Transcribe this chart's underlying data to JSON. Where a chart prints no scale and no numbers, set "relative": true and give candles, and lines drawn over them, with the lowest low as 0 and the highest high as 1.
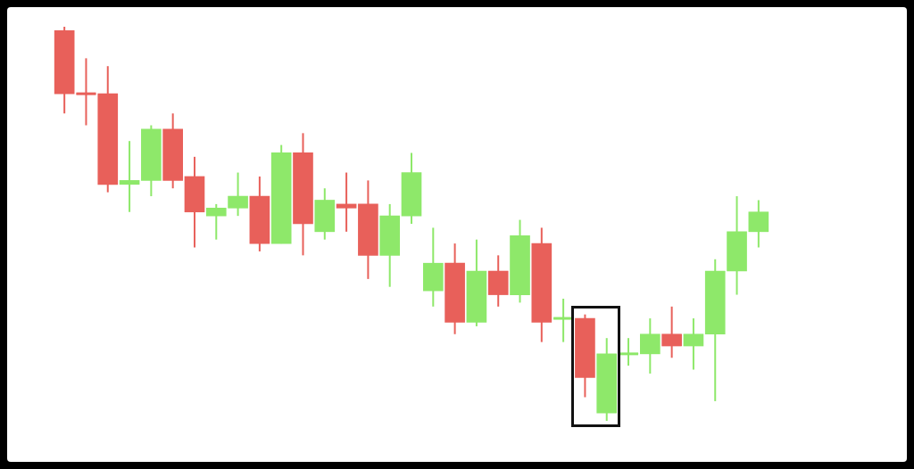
{
  "chart_data": {
    "type": "candlestick",
    "relative": true,
    "grid": false,
    "legend": false,
    "categories": [
      null,
      null,
      null,
      null,
      null,
      null,
      null,
      null,
      null,
      null,
      null,
      null,
      null,
      null,
      null,
      null,
      null,
      null,
      null,
      null,
      null,
      null,
      null,
      null,
      null,
      null,
      null,
      null,
      null,
      null,
      null,
      null,
      null
    ],
    "ohlc": [
      [
        0.99,
        1.0,
        0.78,
        0.83
      ],
      [
        0.83,
        0.92,
        0.75,
        0.83
      ],
      [
        0.83,
        0.9,
        0.58,
        0.6
      ],
      [
        0.6,
        0.71,
        0.53,
        0.61
      ],
      [
        0.61,
        0.75,
        0.57,
        0.74
      ],
      [
        0.74,
        0.78,
        0.59,
        0.61
      ],
      [
        0.62,
        0.67,
        0.44,
        0.53
      ],
      [
        0.52,
        0.55,
        0.46,
        0.54
      ],
      [
        0.54,
        0.63,
        0.52,
        0.57
      ],
      [
        0.57,
        0.62,
        0.43,
        0.45
      ],
      [
        0.45,
        0.7,
        0.45,
        0.68
      ],
      [
        0.68,
        0.73,
        0.42,
        0.5
      ],
      [
        0.48,
        0.59,
        0.46,
        0.56
      ],
      [
        0.55,
        0.63,
        0.48,
        0.54
      ],
      [
        0.55,
        0.61,
        0.36,
        0.42
      ],
      [
        0.42,
        0.55,
        0.34,
        0.52
      ],
      [
        0.52,
        0.68,
        0.5,
        0.63
      ],
      [
        0.33,
        0.49,
        0.29,
        0.4
      ],
      [
        0.4,
        0.45,
        0.22,
        0.25
      ],
      [
        0.25,
        0.46,
        0.24,
        0.38
      ],
      [
        0.38,
        0.42,
        0.29,
        0.32
      ],
      [
        0.32,
        0.51,
        0.3,
        0.47
      ],
      [
        0.45,
        0.49,
        0.2,
        0.25
      ],
      [
        0.26,
        0.31,
        0.2,
        0.26
      ],
      [
        0.26,
        0.27,
        0.06,
        0.11
      ],
      [
        0.02,
        0.21,
        0,
        0.17
      ],
      [
        0.17,
        0.21,
        0.14,
        0.17
      ],
      [
        0.17,
        0.26,
        0.12,
        0.22
      ],
      [
        0.22,
        0.29,
        0.16,
        0.19
      ],
      [
        0.19,
        0.26,
        0.13,
        0.22
      ],
      [
        0.22,
        0.41,
        0.05,
        0.38
      ],
      [
        0.38,
        0.57,
        0.32,
        0.48
      ],
      [
        0.48,
        0.56,
        0.44,
        0.53
      ]
    ],
    "colors": [
      "#e8605a",
      "#e8605a",
      "#e8605a",
      "#8ee86a",
      "#8ee86a",
      "#e8605a",
      "#e8605a",
      "#8ee86a",
      "#8ee86a",
      "#e8605a",
      "#8ee86a",
      "#e8605a",
      "#8ee86a",
      "#e8605a",
      "#e8605a",
      "#8ee86a",
      "#8ee86a",
      "#8ee86a",
      "#e8605a",
      "#8ee86a",
      "#e8605a",
      "#8ee86a",
      "#e8605a",
      "#8ee86a",
      "#e8605a",
      "#8ee86a",
      "#8ee86a",
      "#8ee86a",
      "#e8605a",
      "#8ee86a",
      "#8ee86a",
      "#8ee86a",
      "#8ee86a"
    ]
  }
}
